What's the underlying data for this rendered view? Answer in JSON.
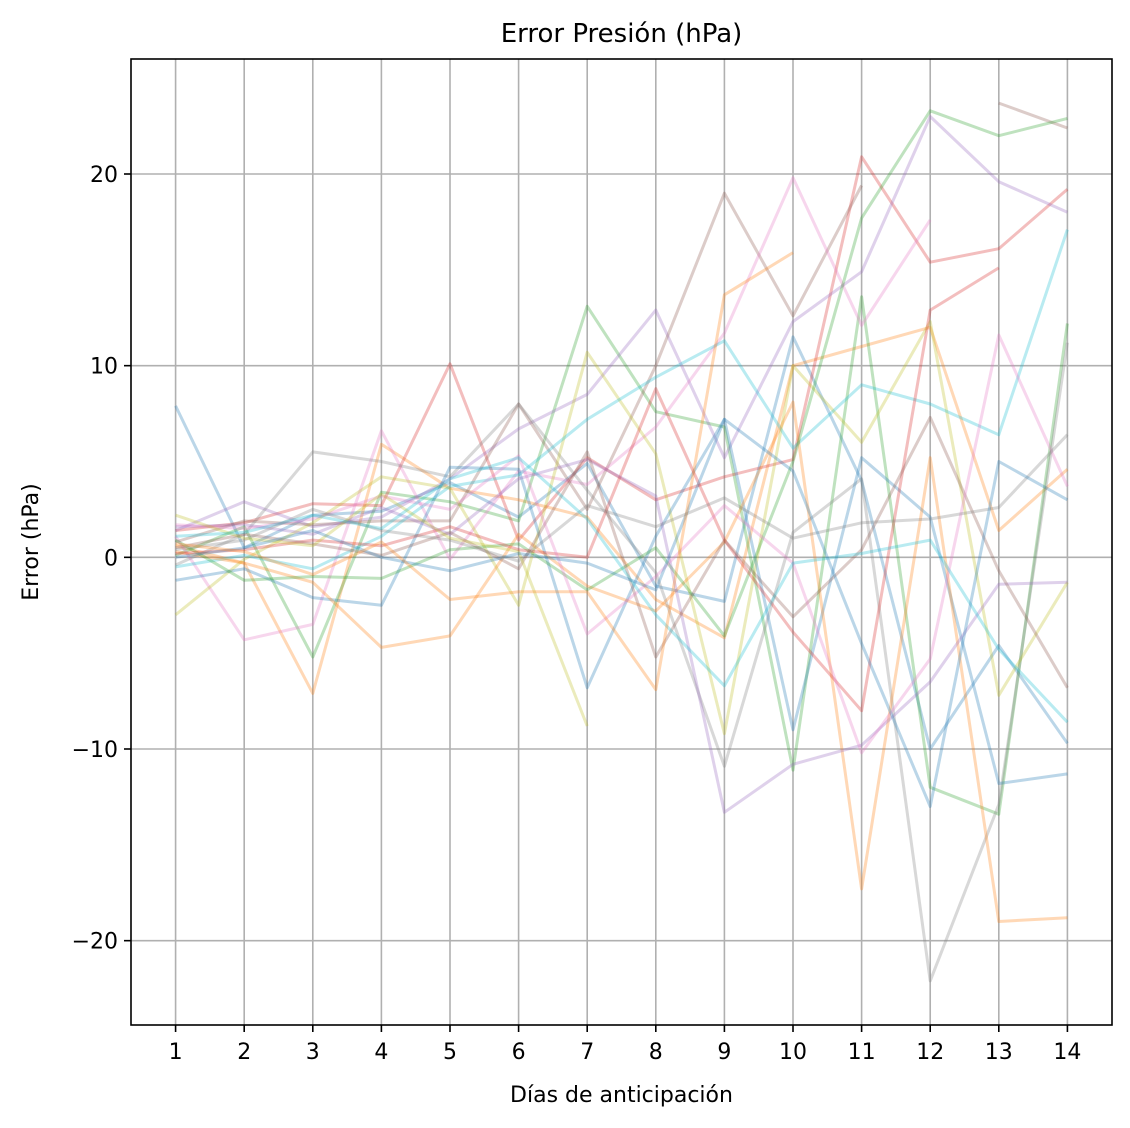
{
  "chart_data": {
    "type": "line",
    "title": "Error Presión (hPa)",
    "xlabel": "Días de anticipación",
    "ylabel": "Error (hPa)",
    "x": [
      1,
      2,
      3,
      4,
      5,
      6,
      7,
      8,
      9,
      10,
      11,
      12,
      13,
      14
    ],
    "xlim": [
      0.35,
      14.65
    ],
    "ylim": [
      -24.4,
      26.0
    ],
    "yticks": [
      -20,
      -10,
      0,
      10,
      20
    ],
    "ytick_labels": [
      "−20",
      "−10",
      "0",
      "10",
      "20"
    ],
    "xtick_labels": [
      "1",
      "2",
      "3",
      "4",
      "5",
      "6",
      "7",
      "8",
      "9",
      "10",
      "11",
      "12",
      "13",
      "14"
    ],
    "grid": true,
    "legend": "none",
    "line_opacity": 0.3,
    "colors": [
      "#1f77b4",
      "#ff7f0e",
      "#2ca02c",
      "#d62728",
      "#9467bd",
      "#8c564b",
      "#e377c2",
      "#7f7f7f",
      "#bcbd22",
      "#17becf"
    ],
    "series": [
      {
        "values": [
          7.9,
          0.5,
          2.2,
          2.4,
          3.9,
          2.1,
          4.9,
          -1.5,
          -2.3,
          11.5,
          4.0,
          -10.0,
          -4.6,
          -9.7
        ]
      },
      {
        "values": [
          0.6,
          -0.3,
          -7.1,
          5.9,
          3.6,
          3.0,
          2.1,
          -2.2,
          -4.2,
          10.0,
          11.0,
          12.0,
          1.4,
          4.6
        ]
      },
      {
        "values": [
          0.1,
          1.6,
          -5.2,
          3.4,
          2.9,
          1.9,
          13.1,
          7.6,
          6.8,
          -11.1,
          13.6,
          -12.0,
          -13.4,
          12.2
        ]
      },
      {
        "values": [
          1.4,
          1.8,
          2.8,
          2.7,
          10.1,
          0.9,
          5.2,
          3.0,
          4.2,
          5.1,
          20.9,
          15.4,
          16.1,
          19.2
        ]
      },
      {
        "values": [
          1.4,
          2.9,
          1.6,
          2.1,
          4.1,
          6.7,
          8.5,
          12.9,
          5.2,
          12.3,
          14.9,
          23.0,
          19.6,
          18.0
        ]
      },
      {
        "values": [
          0.8,
          1.9,
          1.7,
          1.9,
          1.9,
          8.0,
          2.5,
          10.0,
          19.0,
          12.6,
          19.4,
          null,
          23.7,
          22.4
        ]
      },
      {
        "values": [
          1.1,
          -4.3,
          -3.5,
          6.6,
          -0.1,
          4.5,
          3.8,
          6.8,
          11.7,
          19.8,
          12.1,
          17.6,
          null,
          null
        ]
      },
      {
        "values": [
          -0.4,
          1.2,
          5.5,
          5.0,
          4.2,
          8.0,
          3.5,
          -0.8,
          -10.9,
          1.3,
          4.1,
          -22.1,
          -12.9,
          11.2
        ]
      },
      {
        "values": [
          -3.0,
          -0.1,
          1.8,
          4.2,
          3.6,
          -2.5,
          10.7,
          5.4,
          -9.2,
          10.0,
          6.0,
          12.3,
          -7.2,
          -1.3
        ]
      },
      {
        "values": [
          -0.5,
          0.1,
          -0.6,
          1.1,
          3.7,
          4.3,
          7.2,
          9.4,
          11.3,
          5.7,
          9.0,
          8.0,
          6.4,
          17.1
        ]
      },
      {
        "values": [
          -1.2,
          -0.6,
          -2.1,
          -2.5,
          4.7,
          4.6,
          -6.8,
          1.1,
          7.2,
          -9.0,
          5.2,
          2.1,
          -11.8,
          -11.3
        ]
      },
      {
        "values": [
          0.3,
          -0.3,
          -1.3,
          -4.7,
          -4.1,
          1.2,
          -1.5,
          -2.8,
          0.8,
          8.1,
          -17.3,
          5.2,
          -19.0,
          -18.8
        ]
      },
      {
        "values": [
          0.9,
          -1.2,
          -1.0,
          -1.1,
          0.4,
          0.7,
          -1.7,
          0.5,
          -4.1,
          5.0,
          17.7,
          23.3,
          22.0,
          22.9
        ]
      },
      {
        "values": [
          0.2,
          0.4,
          0.9,
          0.6,
          1.6,
          0.4,
          0.0,
          8.8,
          0.9,
          -3.9,
          -8.0,
          12.9,
          15.1,
          null
        ]
      },
      {
        "values": [
          1.6,
          1.7,
          1.2,
          2.6,
          1.2,
          4.1,
          5.1,
          3.2,
          -13.3,
          -10.8,
          -9.8,
          -6.5,
          -1.4,
          -1.3
        ]
      },
      {
        "values": [
          0.5,
          1.2,
          0.7,
          0.1,
          1.3,
          -0.6,
          5.5,
          -5.2,
          0.9,
          -3.1,
          0.4,
          7.3,
          -0.7,
          -6.8
        ]
      },
      {
        "values": [
          1.7,
          1.5,
          2.0,
          3.2,
          2.5,
          5.3,
          -4.0,
          -1.0,
          2.7,
          -0.3,
          -10.2,
          -5.3,
          11.6,
          3.7
        ]
      },
      {
        "values": [
          0.4,
          0.9,
          2.5,
          1.4,
          0.9,
          -0.2,
          2.7,
          1.6,
          3.1,
          1.0,
          1.8,
          2.0,
          2.6,
          6.4
        ]
      },
      {
        "values": [
          2.2,
          1.0,
          0.6,
          3.3,
          1.0,
          0.3,
          -8.8,
          null,
          null,
          null,
          null,
          null,
          null,
          null
        ]
      },
      {
        "values": [
          1.1,
          1.3,
          2.2,
          1.5,
          4.1,
          5.2,
          2.0,
          -3.0,
          -6.7,
          -0.3,
          0.2,
          0.9,
          -4.8,
          -8.6
        ]
      },
      {
        "values": [
          0.0,
          0.5,
          1.4,
          0.0,
          -0.7,
          0.2,
          -0.3,
          -1.7,
          7.2,
          4.5,
          -4.5,
          -13.0,
          5.0,
          3.0
        ]
      },
      {
        "values": [
          0.7,
          0.3,
          -0.9,
          0.8,
          -2.2,
          -1.8,
          -1.8,
          -6.9,
          13.7,
          15.9,
          null,
          null,
          null,
          null
        ]
      }
    ]
  }
}
